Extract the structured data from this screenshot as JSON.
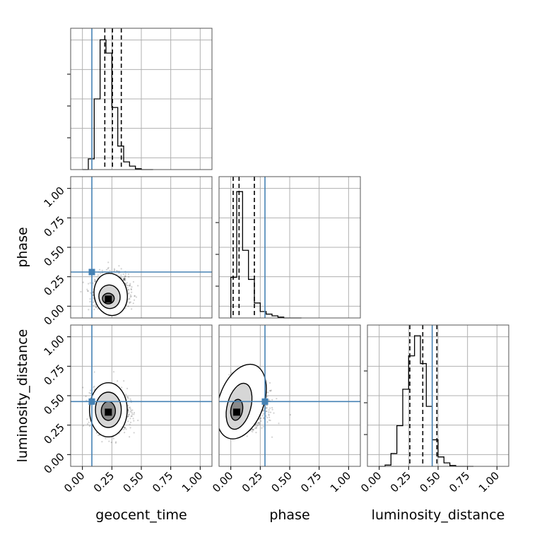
{
  "chart_data": {
    "type": "corner",
    "parameters": [
      "geocent_time",
      "phase",
      "luminosity_distance"
    ],
    "axis_range": [
      -0.1,
      1.1
    ],
    "ticks": [
      0.0,
      0.25,
      0.5,
      0.75,
      1.0
    ],
    "tick_labels": [
      "0.00",
      "0.25",
      "0.50",
      "0.75",
      "1.00"
    ],
    "grid": true,
    "truths": {
      "geocent_time": 0.08,
      "phase": 0.29,
      "luminosity_distance": 0.45
    },
    "truth_color": "#4682b4",
    "hist_color": "#000000",
    "histograms": [
      {
        "parameter": "geocent_time",
        "bin_edges": [
          0.0,
          0.05,
          0.1,
          0.15,
          0.2,
          0.25,
          0.3,
          0.35,
          0.4,
          0.45,
          0.5,
          0.55,
          0.6
        ],
        "counts": [
          0,
          25,
          165,
          303,
          272,
          145,
          55,
          18,
          8,
          2,
          0,
          0
        ],
        "ymax": 330,
        "quantiles": [
          0.19,
          0.255,
          0.33
        ]
      },
      {
        "parameter": "phase",
        "bin_edges": [
          0.0,
          0.05,
          0.1,
          0.15,
          0.2,
          0.25,
          0.3,
          0.35,
          0.4,
          0.45,
          0.5,
          0.55,
          0.6
        ],
        "counts": [
          95,
          295,
          158,
          90,
          35,
          15,
          9,
          5,
          2,
          0,
          0,
          0
        ],
        "ymax": 330,
        "quantiles": [
          0.02,
          0.07,
          0.2
        ]
      },
      {
        "parameter": "luminosity_distance",
        "bin_edges": [
          0.0,
          0.05,
          0.1,
          0.15,
          0.2,
          0.25,
          0.3,
          0.35,
          0.4,
          0.45,
          0.5,
          0.55,
          0.6,
          0.65,
          0.7,
          0.75,
          0.8
        ],
        "counts": [
          0,
          3,
          30,
          95,
          180,
          258,
          305,
          240,
          140,
          62,
          22,
          8,
          2,
          0,
          0,
          0
        ],
        "ymax": 330,
        "quantiles": [
          0.26,
          0.37,
          0.49
        ]
      }
    ],
    "scatter_panels": [
      {
        "x": "geocent_time",
        "y": "phase",
        "mean": [
          0.25,
          0.11
        ],
        "spread": [
          0.07,
          0.08
        ],
        "contours": [
          {
            "cx": 0.24,
            "cy": 0.1,
            "rx": 0.14,
            "ry": 0.18,
            "tilt": -10
          },
          {
            "cx": 0.23,
            "cy": 0.08,
            "rx": 0.09,
            "ry": 0.1,
            "tilt": -10
          },
          {
            "cx": 0.22,
            "cy": 0.065,
            "rx": 0.05,
            "ry": 0.045,
            "tilt": 0
          }
        ],
        "peak": [
          0.22,
          0.06
        ]
      },
      {
        "x": "geocent_time",
        "y": "luminosity_distance",
        "mean": [
          0.24,
          0.38
        ],
        "spread": [
          0.07,
          0.09
        ],
        "contours": [
          {
            "cx": 0.22,
            "cy": 0.38,
            "rx": 0.16,
            "ry": 0.23,
            "tilt": 0
          },
          {
            "cx": 0.22,
            "cy": 0.38,
            "rx": 0.11,
            "ry": 0.15,
            "tilt": 0
          },
          {
            "cx": 0.22,
            "cy": 0.37,
            "rx": 0.06,
            "ry": 0.08,
            "tilt": 0
          }
        ],
        "peak": [
          0.22,
          0.36
        ]
      },
      {
        "x": "phase",
        "y": "luminosity_distance",
        "mean": [
          0.12,
          0.42
        ],
        "spread": [
          0.09,
          0.09
        ],
        "contours": [
          {
            "cx": 0.09,
            "cy": 0.45,
            "rx": 0.19,
            "ry": 0.33,
            "tilt": 20
          },
          {
            "cx": 0.07,
            "cy": 0.41,
            "rx": 0.1,
            "ry": 0.2,
            "tilt": 15
          },
          {
            "cx": 0.05,
            "cy": 0.38,
            "rx": 0.05,
            "ry": 0.09,
            "tilt": 10
          }
        ],
        "peak": [
          0.05,
          0.36
        ]
      }
    ]
  }
}
